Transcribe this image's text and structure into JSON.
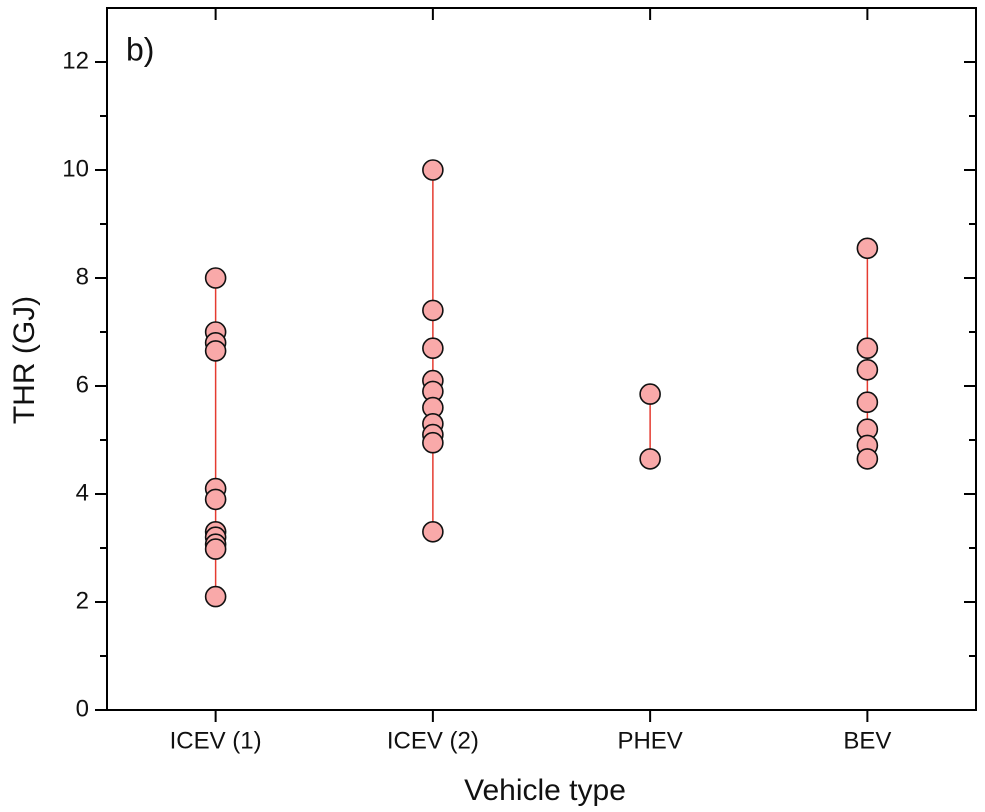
{
  "chart_data": {
    "type": "strip",
    "annotation": "b)",
    "xlabel": "Vehicle type",
    "ylabel": "THR (GJ)",
    "categories": [
      "ICEV (1)",
      "ICEV (2)",
      "PHEV",
      "BEV"
    ],
    "values": [
      [
        8.0,
        7.0,
        6.8,
        6.65,
        4.1,
        3.9,
        3.3,
        3.2,
        3.07,
        2.98,
        2.1
      ],
      [
        10.0,
        7.4,
        6.7,
        6.1,
        5.9,
        5.6,
        5.3,
        5.1,
        4.95,
        3.3
      ],
      [
        5.85,
        4.65
      ],
      [
        8.55,
        6.7,
        6.3,
        5.7,
        5.2,
        4.9,
        4.65
      ]
    ],
    "color": "#f9a9a9",
    "range_color": "#e53b30",
    "ylim": [
      0,
      13
    ],
    "yticks": [
      0,
      2,
      4,
      6,
      8,
      10,
      12
    ],
    "yminor_ticks": [
      1,
      3,
      5,
      7,
      9,
      11
    ]
  }
}
